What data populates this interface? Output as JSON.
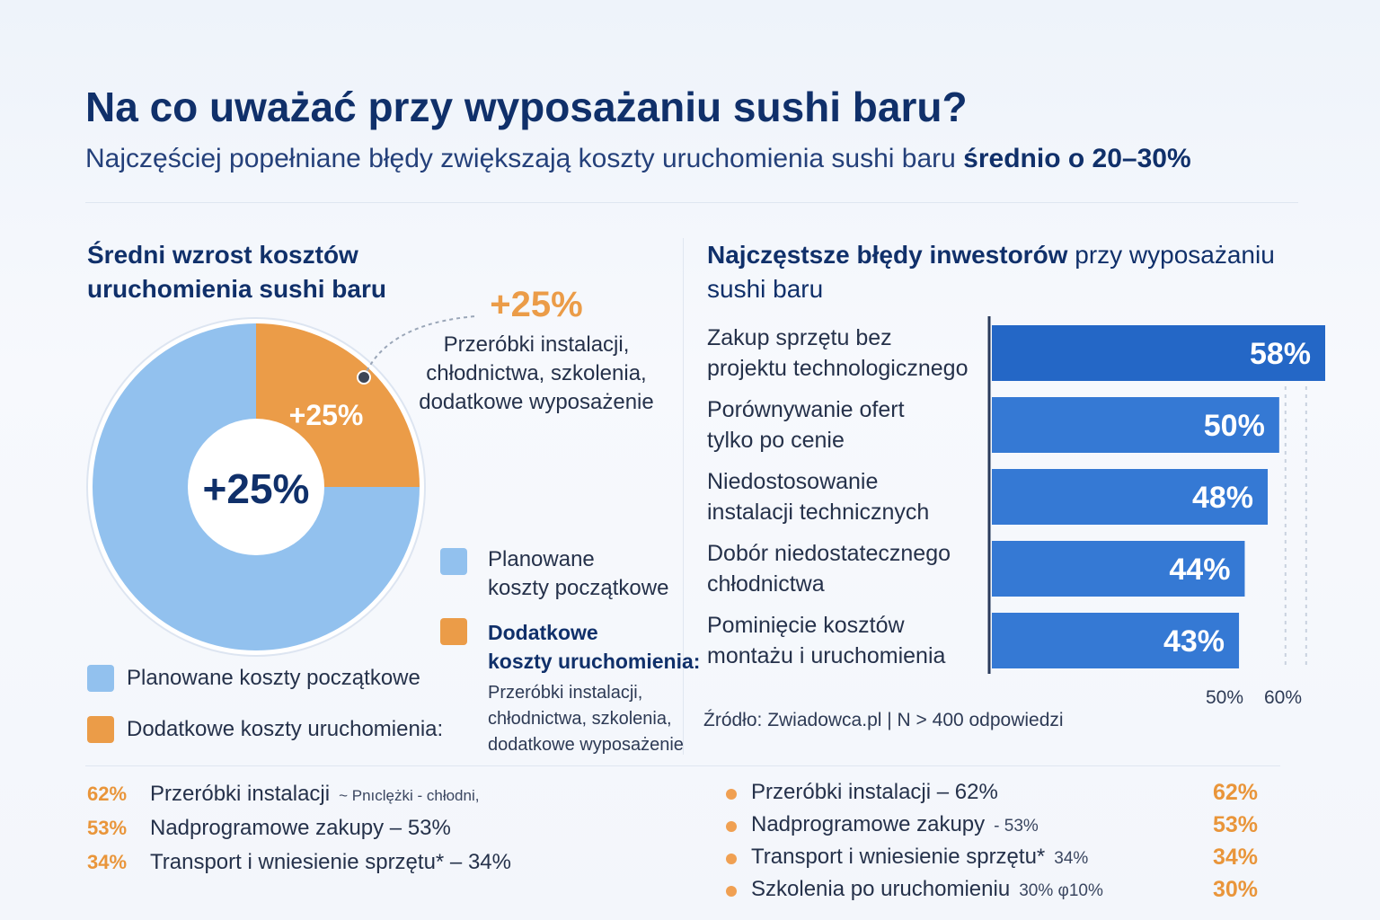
{
  "header": {
    "title": "Na co uważać przy wyposażaniu sushi baru?",
    "subtitle_main": "Najczęściej popełniane błędy zwiększają koszty uruchomienia sushi baru ",
    "subtitle_bold": "średnio o 20–30%"
  },
  "colors": {
    "navy": "#10306a",
    "bar_blue": "#2d6fcf",
    "pie_light": "#92c1ee",
    "pie_orange": "#eb9c48"
  },
  "left": {
    "heading_line1": "Średni wzrost kosztów",
    "heading_line2": "uruchomienia sushi baru",
    "center_label": "+25%",
    "slice_label": "+25%",
    "callout_value": "+25%",
    "callout_line1": "Przeróbki instalacji,",
    "callout_line2": "chłodnictwa, szkolenia,",
    "callout_line3": "dodatkowe wyposażenie",
    "legend_planned_line1": "Planowane",
    "legend_planned_line2": "koszty początkowe",
    "legend_additional_line1": "Dodatkowe",
    "legend_additional_line2": "koszty uruchomienia:",
    "legend_additional_desc1": "Przeróbki instalacji,",
    "legend_additional_desc2": "chłodnictwa, szkolenia,",
    "legend_additional_desc3": "dodatkowe wyposażenie",
    "legend_bottom_planned": "Planowane koszty początkowe",
    "legend_bottom_additional": "Dodatkowe koszty uruchomienia:"
  },
  "right": {
    "heading_bold": "Najczęstsze błędy inwestorów",
    "heading_rest": " przy wyposażaniu",
    "heading_line2": "sushi baru",
    "source": "Źródło: Zwiadowca.pl | N > 400 odpowiedzi"
  },
  "bottom_left": [
    {
      "pct": "62%",
      "text": "Przeróbki instalacji",
      "extra": "~ Pnıclężki - chłodni,"
    },
    {
      "pct": "53%",
      "text": "Nadprogramowe zakupy – 53%",
      "extra": ""
    },
    {
      "pct": "34%",
      "text": "Transport i wniesienie sprzętu* – 34%",
      "extra": ""
    }
  ],
  "bottom_right": [
    {
      "text": "Przeróbki instalacji – 62%",
      "extra": "",
      "pct": "62%"
    },
    {
      "text": "Nadprogramowe zakupy",
      "extra": "- 53%",
      "pct": "53%"
    },
    {
      "text": "Transport i wniesienie sprzętu*",
      "extra": "34%",
      "pct": "34%"
    },
    {
      "text": "Szkolenia po uruchomieniu",
      "extra": "30%  φ10%",
      "pct": "30%"
    }
  ],
  "chart_data": [
    {
      "type": "pie",
      "categories": [
        "Planowane koszty początkowe",
        "Dodatkowe koszty uruchomienia"
      ],
      "values": [
        75,
        25
      ],
      "title": "Średni wzrost kosztów uruchomienia sushi baru"
    },
    {
      "type": "bar",
      "orientation": "horizontal",
      "title": "Najczęstsze błędy inwestorów przy wyposażaniu sushi baru",
      "categories": [
        [
          "Zakup sprzętu bez",
          "projektu technologicznego"
        ],
        [
          "Porównywanie ofert",
          "tylko po cenie"
        ],
        [
          "Niedostosowanie",
          "instalacji technicznych"
        ],
        [
          "Dobór niedostatecznego",
          "chłodnictwa"
        ],
        [
          "Pominięcie kosztów",
          "montażu i uruchomienia"
        ]
      ],
      "values": [
        58,
        50,
        48,
        44,
        43
      ],
      "value_labels": [
        "58%",
        "50%",
        "48%",
        "44%",
        "43%"
      ],
      "tick_labels": [
        "50%",
        "60%"
      ]
    }
  ]
}
